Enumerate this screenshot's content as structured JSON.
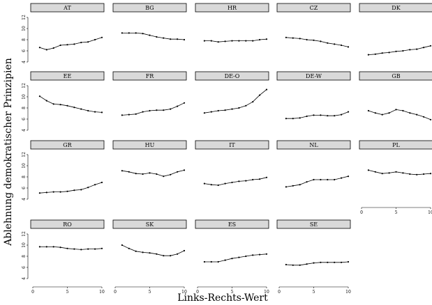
{
  "chart_data": {
    "type": "line",
    "layout": "small-multiples",
    "xlabel": "Links-Rechts-Wert",
    "ylabel": "Ablehnung demokratischer Prinzipien",
    "xlim": [
      0,
      10
    ],
    "ylim": [
      3.5,
      12.5
    ],
    "xticks": [
      0,
      5,
      10
    ],
    "yticks": [
      4,
      6,
      8,
      10,
      12
    ],
    "x": [
      1,
      2,
      3,
      4,
      5,
      6,
      7,
      8,
      9,
      10
    ],
    "panels": [
      {
        "name": "AT",
        "values": [
          6.6,
          6.2,
          6.5,
          7.0,
          7.1,
          7.2,
          7.5,
          7.6,
          8.0,
          8.4
        ]
      },
      {
        "name": "BG",
        "values": [
          9.2,
          9.2,
          9.2,
          9.1,
          8.8,
          8.5,
          8.3,
          8.1,
          8.1,
          8.0
        ]
      },
      {
        "name": "HR",
        "values": [
          7.8,
          7.8,
          7.6,
          7.7,
          7.8,
          7.8,
          7.8,
          7.8,
          8.0,
          8.1
        ]
      },
      {
        "name": "CZ",
        "values": [
          8.4,
          8.3,
          8.2,
          8.0,
          7.9,
          7.7,
          7.4,
          7.2,
          7.0,
          6.7
        ]
      },
      {
        "name": "DK",
        "values": [
          5.3,
          5.4,
          5.6,
          5.7,
          5.9,
          6.0,
          6.2,
          6.3,
          6.6,
          6.9
        ]
      },
      {
        "name": "EE",
        "values": [
          10.1,
          9.3,
          8.7,
          8.6,
          8.4,
          8.1,
          7.8,
          7.5,
          7.3,
          7.2
        ]
      },
      {
        "name": "FR",
        "values": [
          6.7,
          6.8,
          6.9,
          7.3,
          7.5,
          7.6,
          7.6,
          7.8,
          8.3,
          8.9
        ]
      },
      {
        "name": "DE-O",
        "values": [
          7.1,
          7.3,
          7.5,
          7.6,
          7.8,
          8.0,
          8.4,
          9.1,
          10.3,
          11.3
        ]
      },
      {
        "name": "DE-W",
        "values": [
          6.1,
          6.1,
          6.2,
          6.5,
          6.7,
          6.7,
          6.6,
          6.6,
          6.8,
          7.3
        ]
      },
      {
        "name": "GB",
        "values": [
          7.5,
          7.1,
          6.8,
          7.1,
          7.7,
          7.5,
          7.1,
          6.8,
          6.4,
          5.9
        ]
      },
      {
        "name": "GR",
        "values": [
          5.1,
          5.2,
          5.3,
          5.3,
          5.4,
          5.6,
          5.7,
          6.1,
          6.6,
          7.0
        ]
      },
      {
        "name": "HU",
        "values": [
          9.1,
          8.9,
          8.6,
          8.5,
          8.7,
          8.5,
          8.1,
          8.4,
          8.9,
          9.2
        ]
      },
      {
        "name": "IT",
        "values": [
          6.8,
          6.6,
          6.5,
          6.8,
          7.0,
          7.2,
          7.3,
          7.5,
          7.6,
          7.9
        ]
      },
      {
        "name": "NL",
        "values": [
          6.2,
          6.4,
          6.6,
          7.1,
          7.5,
          7.5,
          7.5,
          7.5,
          7.8,
          8.1
        ]
      },
      {
        "name": "PL",
        "values": [
          9.2,
          8.9,
          8.6,
          8.7,
          8.9,
          8.7,
          8.5,
          8.4,
          8.5,
          8.6
        ]
      },
      {
        "name": "RO",
        "values": [
          9.7,
          9.7,
          9.7,
          9.6,
          9.4,
          9.3,
          9.2,
          9.3,
          9.3,
          9.4
        ]
      },
      {
        "name": "SK",
        "values": [
          10.0,
          9.4,
          8.9,
          8.7,
          8.6,
          8.4,
          8.1,
          8.1,
          8.4,
          9.0
        ]
      },
      {
        "name": "ES",
        "values": [
          7.0,
          7.0,
          7.0,
          7.3,
          7.6,
          7.8,
          8.0,
          8.2,
          8.3,
          8.4
        ]
      },
      {
        "name": "SE",
        "values": [
          6.5,
          6.4,
          6.4,
          6.6,
          6.8,
          6.9,
          6.9,
          6.9,
          6.9,
          7.0
        ]
      }
    ]
  }
}
